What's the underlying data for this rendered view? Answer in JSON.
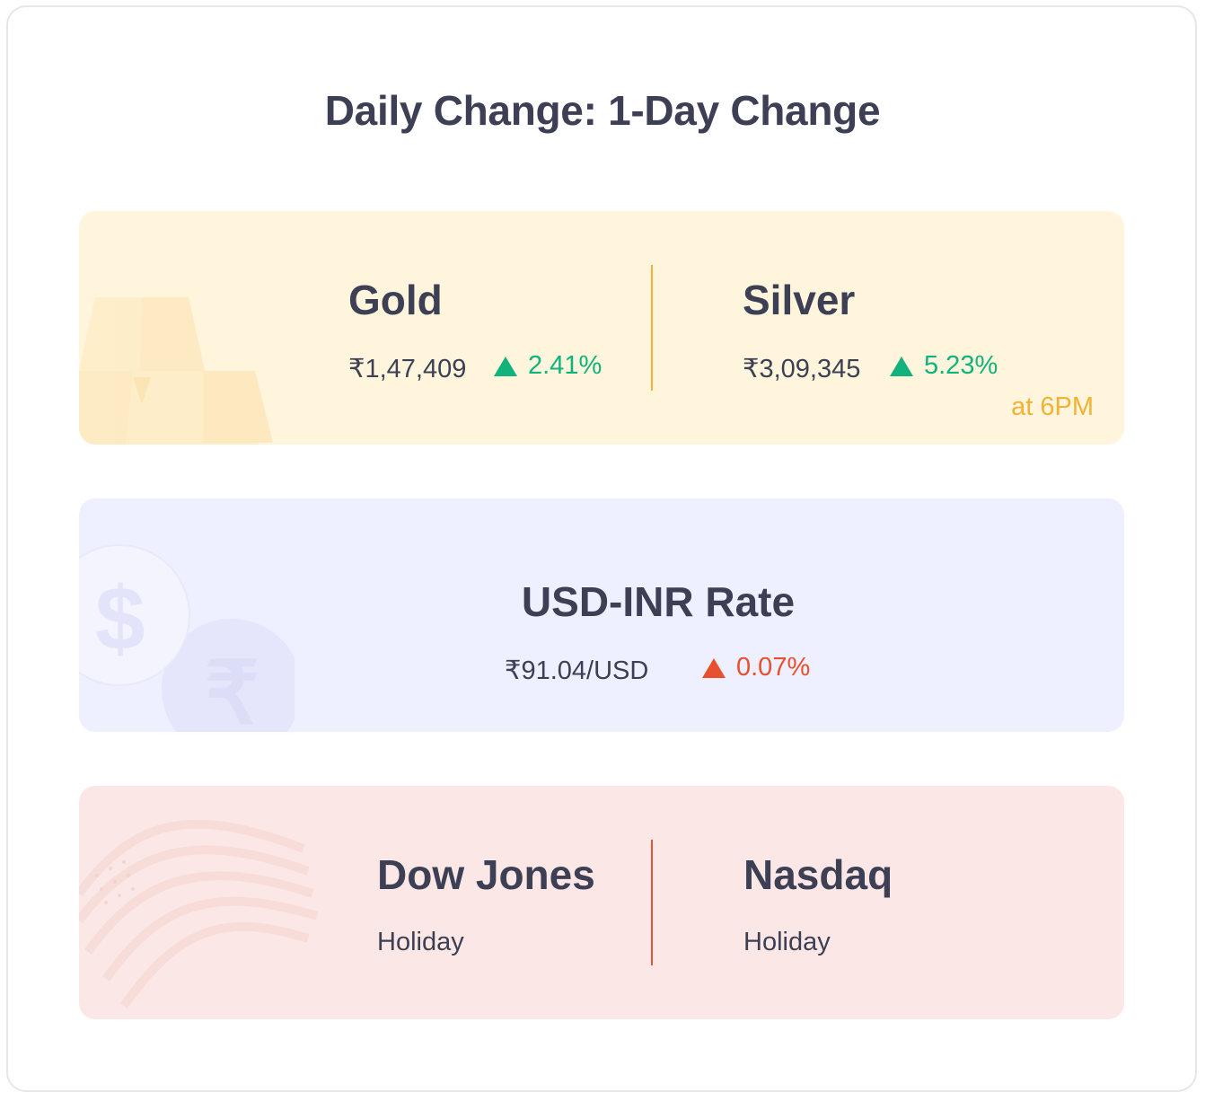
{
  "title": "Daily Change: 1-Day Change",
  "metals": {
    "gold": {
      "name": "Gold",
      "price": "₹1,47,409",
      "change": "2.41%",
      "direction": "up"
    },
    "silver": {
      "name": "Silver",
      "price": "₹3,09,345",
      "change": "5.23%",
      "direction": "up"
    },
    "time_note": "at 6PM",
    "accent": "#f2b233"
  },
  "forex": {
    "name": "USD-INR Rate",
    "rate": "₹91.04/USD",
    "change": "0.07%",
    "direction": "up"
  },
  "us_markets": {
    "dow": {
      "name": "Dow Jones",
      "status": "Holiday"
    },
    "nasdaq": {
      "name": "Nasdaq",
      "status": "Holiday"
    },
    "accent": "#e0553a"
  },
  "colors": {
    "positive": "#12b27c",
    "negative": "#e8512f",
    "text": "#3d4054"
  }
}
